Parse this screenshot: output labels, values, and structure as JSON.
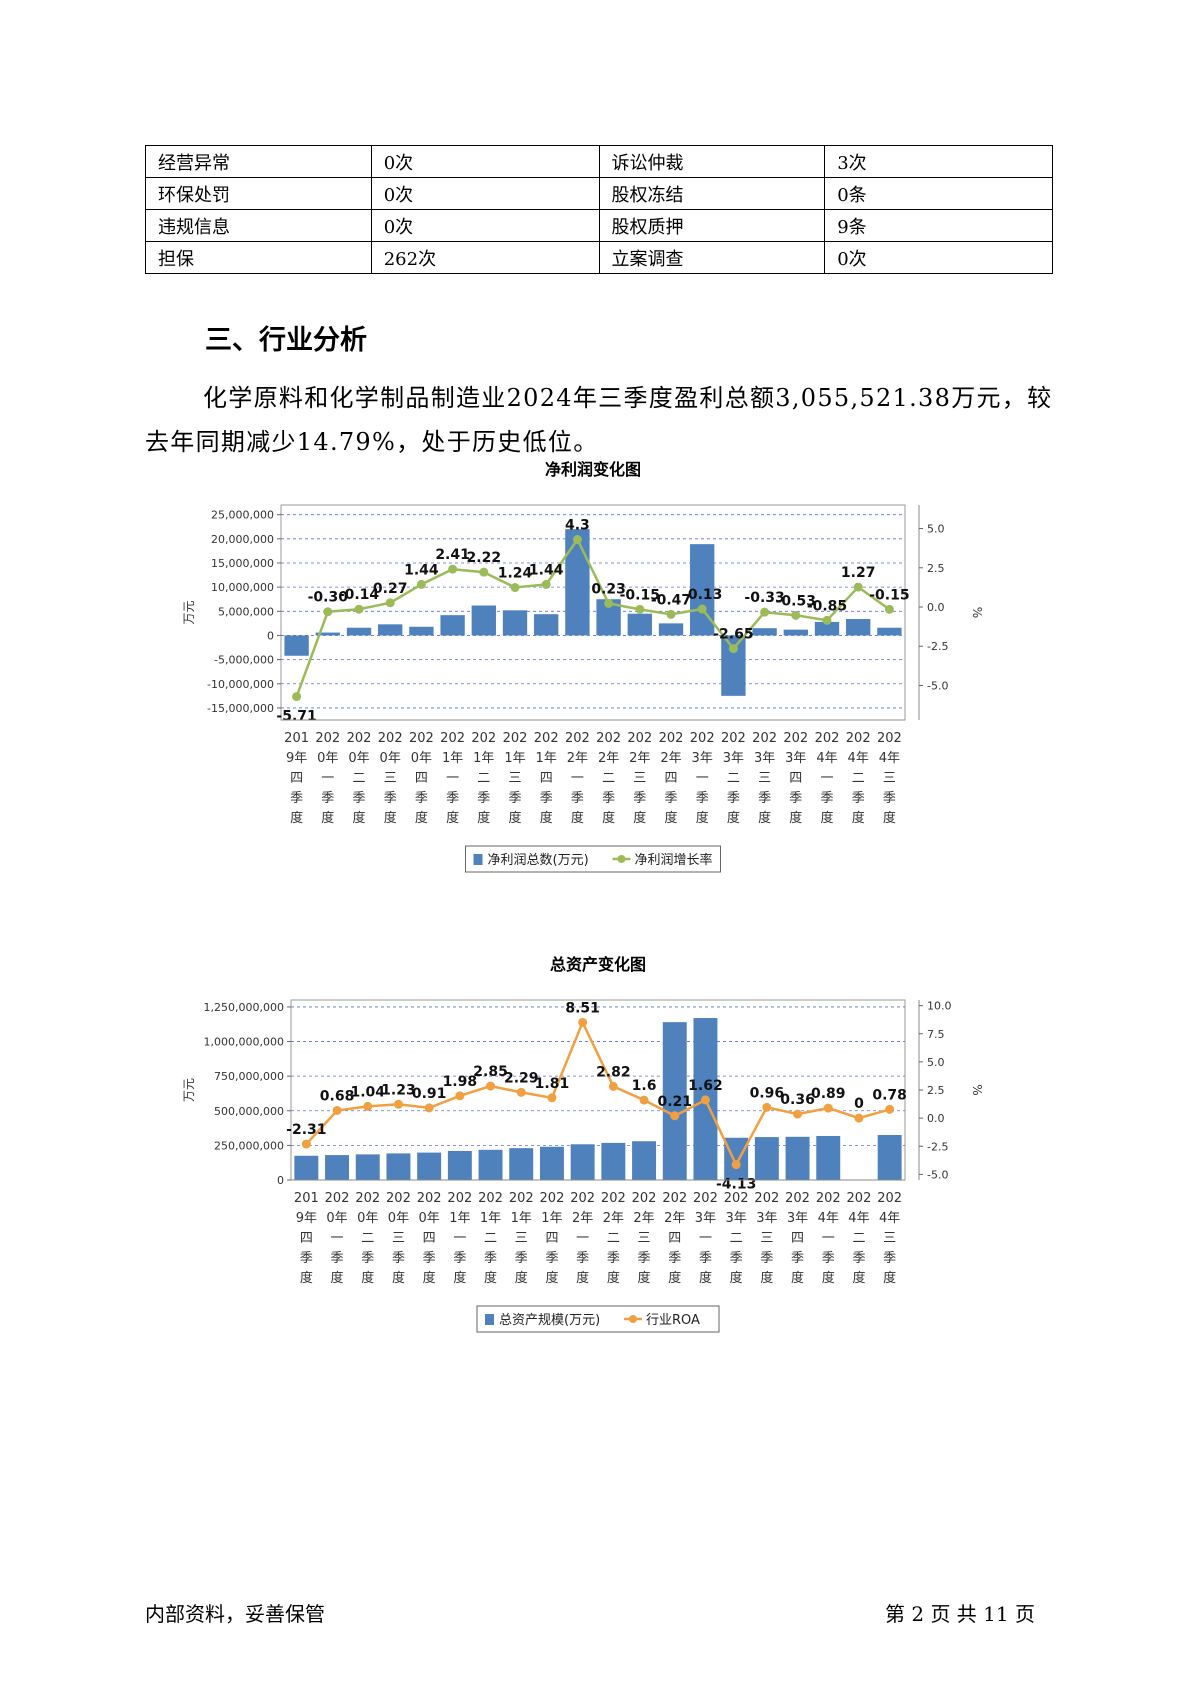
{
  "risk_table": {
    "rows": [
      [
        {
          "label": "经营异常",
          "value": "0次"
        },
        {
          "label": "诉讼仲裁",
          "value": "3次"
        }
      ],
      [
        {
          "label": "环保处罚",
          "value": "0次"
        },
        {
          "label": "股权冻结",
          "value": "0条"
        }
      ],
      [
        {
          "label": "违规信息",
          "value": "0次"
        },
        {
          "label": "股权质押",
          "value": "9条"
        }
      ],
      [
        {
          "label": "担保",
          "value": "262次"
        },
        {
          "label": "立案调查",
          "value": "0次"
        }
      ]
    ]
  },
  "section": {
    "heading": "三、行业分析",
    "paragraph": "化学原料和化学制品制造业2024年三季度盈利总额3,055,521.38万元，较去年同期减少14.79%，处于历史低位。"
  },
  "chart_data": [
    {
      "type": "bar",
      "title": "净利润变化图",
      "ylabel": "万元",
      "y2label": "%",
      "ylim": [
        -17500000,
        27000000
      ],
      "yticks": [
        25000000,
        20000000,
        15000000,
        10000000,
        5000000,
        0,
        -5000000,
        -10000000,
        -15000000
      ],
      "ytick_labels": [
        "25,000,000",
        "20,000,000",
        "15,000,000",
        "10,000,000",
        "5,000,000",
        "0",
        "-5,000,000",
        "-10,000,000",
        "-15,000,000"
      ],
      "y2lim": [
        -7.2,
        6.5
      ],
      "y2ticks": [
        5.0,
        2.5,
        0.0,
        -2.5,
        -5.0
      ],
      "y2tick_labels": [
        "5.0",
        "2.5",
        "0.0",
        "-2.5",
        "-5.0"
      ],
      "categories": [
        [
          "201",
          "9年",
          "四",
          "季",
          "度"
        ],
        [
          "202",
          "0年",
          "一",
          "季",
          "度"
        ],
        [
          "202",
          "0年",
          "二",
          "季",
          "度"
        ],
        [
          "202",
          "0年",
          "三",
          "季",
          "度"
        ],
        [
          "202",
          "0年",
          "四",
          "季",
          "度"
        ],
        [
          "202",
          "1年",
          "一",
          "季",
          "度"
        ],
        [
          "202",
          "1年",
          "二",
          "季",
          "度"
        ],
        [
          "202",
          "1年",
          "三",
          "季",
          "度"
        ],
        [
          "202",
          "1年",
          "四",
          "季",
          "度"
        ],
        [
          "202",
          "2年",
          "一",
          "季",
          "度"
        ],
        [
          "202",
          "2年",
          "二",
          "季",
          "度"
        ],
        [
          "202",
          "2年",
          "三",
          "季",
          "度"
        ],
        [
          "202",
          "2年",
          "四",
          "季",
          "度"
        ],
        [
          "202",
          "3年",
          "一",
          "季",
          "度"
        ],
        [
          "202",
          "3年",
          "二",
          "季",
          "度"
        ],
        [
          "202",
          "3年",
          "三",
          "季",
          "度"
        ],
        [
          "202",
          "3年",
          "四",
          "季",
          "度"
        ],
        [
          "202",
          "4年",
          "一",
          "季",
          "度"
        ],
        [
          "202",
          "4年",
          "二",
          "季",
          "度"
        ],
        [
          "202",
          "4年",
          "三",
          "季",
          "度"
        ]
      ],
      "series": [
        {
          "name": "净利润总数(万元)",
          "kind": "bar",
          "color": "#4f81bd",
          "values": [
            -4200000,
            600000,
            1600000,
            2300000,
            1800000,
            4200000,
            6200000,
            5200000,
            4400000,
            22000000,
            7500000,
            4500000,
            2500000,
            18900000,
            -12500000,
            1500000,
            1200000,
            2800000,
            3400000,
            1600000
          ]
        },
        {
          "name": "净利润增长率",
          "kind": "line",
          "color": "#9bbb59",
          "values": [
            -5.71,
            -0.3,
            -0.14,
            0.27,
            1.44,
            2.41,
            2.22,
            1.24,
            1.44,
            4.3,
            0.23,
            -0.15,
            -0.47,
            -0.13,
            -2.65,
            -0.33,
            -0.53,
            -0.85,
            1.27,
            -0.15
          ],
          "labels": [
            "-5.71",
            "-0.30",
            "-0.14",
            "0.27",
            "1.44",
            "2.41",
            "2.22",
            "1.24",
            "1.44",
            "4.3",
            "0.23",
            "-0.15",
            "-0.47",
            "-0.13",
            "-2.65",
            "-0.33",
            "-0.53",
            "-0.85",
            "1.27",
            "-0.15"
          ]
        }
      ],
      "legend_position": "bottom",
      "grid": true
    },
    {
      "type": "bar",
      "title": "总资产变化图",
      "ylabel": "万元",
      "y2label": "%",
      "ylim": [
        0,
        1300000000
      ],
      "yticks": [
        1250000000,
        1000000000,
        750000000,
        500000000,
        250000000,
        0
      ],
      "ytick_labels": [
        "1,250,000,000",
        "1,000,000,000",
        "750,000,000",
        "500,000,000",
        "250,000,000",
        "0"
      ],
      "y2lim": [
        -5.5,
        10.5
      ],
      "y2ticks": [
        10.0,
        7.5,
        5.0,
        2.5,
        0.0,
        -2.5,
        -5.0
      ],
      "y2tick_labels": [
        "10.0",
        "7.5",
        "5.0",
        "2.5",
        "0.0",
        "-2.5",
        "-5.0"
      ],
      "categories": [
        [
          "201",
          "9年",
          "四",
          "季",
          "度"
        ],
        [
          "202",
          "0年",
          "一",
          "季",
          "度"
        ],
        [
          "202",
          "0年",
          "二",
          "季",
          "度"
        ],
        [
          "202",
          "0年",
          "三",
          "季",
          "度"
        ],
        [
          "202",
          "0年",
          "四",
          "季",
          "度"
        ],
        [
          "202",
          "1年",
          "一",
          "季",
          "度"
        ],
        [
          "202",
          "1年",
          "二",
          "季",
          "度"
        ],
        [
          "202",
          "1年",
          "三",
          "季",
          "度"
        ],
        [
          "202",
          "1年",
          "四",
          "季",
          "度"
        ],
        [
          "202",
          "2年",
          "一",
          "季",
          "度"
        ],
        [
          "202",
          "2年",
          "二",
          "季",
          "度"
        ],
        [
          "202",
          "2年",
          "三",
          "季",
          "度"
        ],
        [
          "202",
          "2年",
          "四",
          "季",
          "度"
        ],
        [
          "202",
          "3年",
          "一",
          "季",
          "度"
        ],
        [
          "202",
          "3年",
          "二",
          "季",
          "度"
        ],
        [
          "202",
          "3年",
          "三",
          "季",
          "度"
        ],
        [
          "202",
          "3年",
          "四",
          "季",
          "度"
        ],
        [
          "202",
          "4年",
          "一",
          "季",
          "度"
        ],
        [
          "202",
          "4年",
          "二",
          "季",
          "度"
        ],
        [
          "202",
          "4年",
          "三",
          "季",
          "度"
        ]
      ],
      "series": [
        {
          "name": "总资产规模(万元)",
          "kind": "bar",
          "color": "#4f81bd",
          "values": [
            175000000,
            180000000,
            185000000,
            192000000,
            198000000,
            210000000,
            218000000,
            230000000,
            240000000,
            258000000,
            268000000,
            280000000,
            1140000000,
            1170000000,
            305000000,
            310000000,
            312000000,
            318000000,
            0,
            325000000
          ]
        },
        {
          "name": "行业ROA",
          "kind": "line",
          "color": "#f0a040",
          "values": [
            -2.31,
            0.68,
            1.04,
            1.23,
            0.91,
            1.98,
            2.85,
            2.29,
            1.81,
            8.51,
            2.82,
            1.6,
            0.21,
            1.62,
            -4.13,
            0.96,
            0.36,
            0.89,
            0,
            0.78
          ],
          "labels": [
            "-2.31",
            "0.68",
            "1.04",
            "1.23",
            "0.91",
            "1.98",
            "2.85",
            "2.29",
            "1.81",
            "8.51",
            "2.82",
            "1.6",
            "0.21",
            "1.62",
            "-4.13",
            "0.96",
            "0.36",
            "0.89",
            "0",
            "0.78"
          ]
        }
      ],
      "legend_position": "bottom",
      "grid": true
    }
  ],
  "footer": {
    "left": "内部资料，妥善保管",
    "right": "第 2 页   共 11 页"
  }
}
